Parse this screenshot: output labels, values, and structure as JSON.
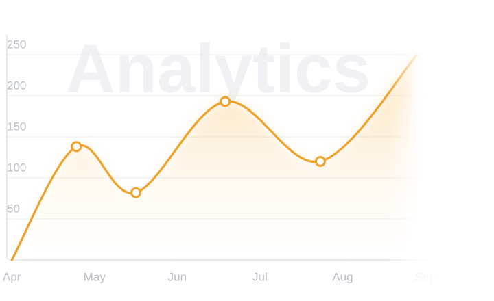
{
  "chart_data": {
    "type": "line",
    "watermark": "Analytics",
    "x": [
      0,
      0.78,
      1.5,
      2.58,
      3.73,
      4.9
    ],
    "values": [
      0,
      138,
      82,
      193,
      120,
      250
    ],
    "color": "#f0a12a",
    "xlim": [
      -0.06,
      5
    ],
    "ylim": [
      0,
      275
    ],
    "xticks": [
      {
        "value": 0,
        "label": "Apr"
      },
      {
        "value": 1,
        "label": "May"
      },
      {
        "value": 2,
        "label": "Jun"
      },
      {
        "value": 3,
        "label": "Jul"
      },
      {
        "value": 4,
        "label": "Aug"
      },
      {
        "value": 5,
        "label": "Sep"
      }
    ],
    "yticks": [
      50,
      100,
      150,
      200,
      250
    ],
    "grid": true
  }
}
